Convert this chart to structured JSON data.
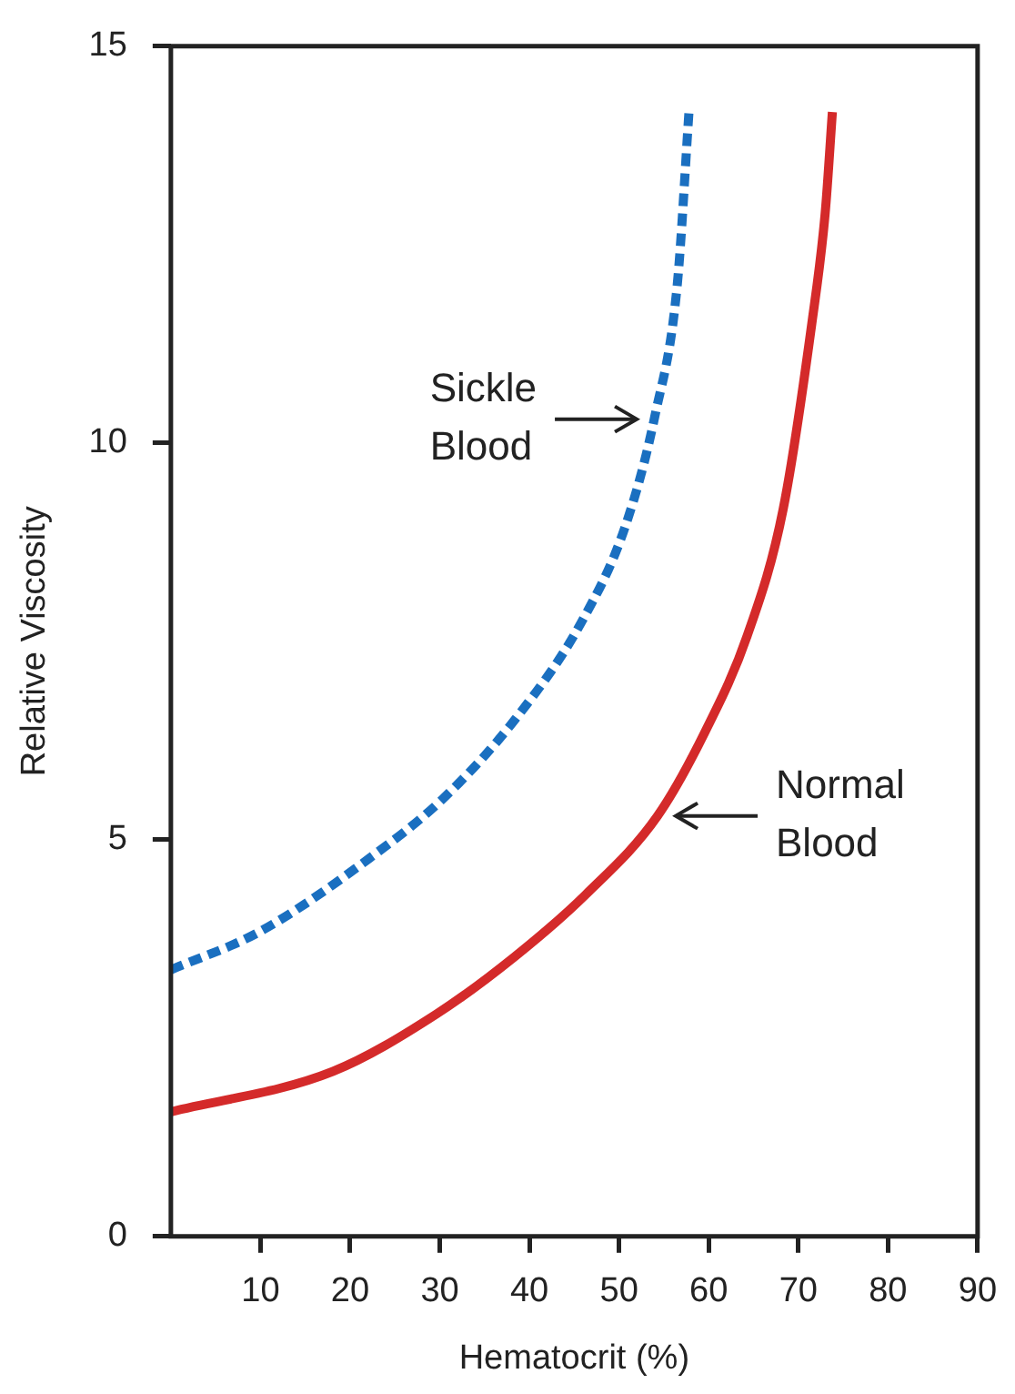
{
  "chart_data": {
    "type": "line",
    "xlabel": "Hematocrit (%)",
    "ylabel": "Relative Viscosity",
    "xlim": [
      0,
      90
    ],
    "xticks": [
      10,
      20,
      30,
      40,
      50,
      60,
      70,
      80,
      90
    ],
    "ylim": [
      0,
      15
    ],
    "yticks": [
      0,
      5,
      10,
      15
    ],
    "grid": false,
    "legend": false,
    "marker": "none",
    "series": [
      {
        "color": "#1a6fc0",
        "line_style": "dashed",
        "x": [
          0,
          9.9,
          22.2,
          30.3,
          38.5,
          45.8,
          50.7,
          54,
          56.5,
          57.8
        ],
        "values": [
          3.36,
          3.84,
          4.77,
          5.51,
          6.53,
          7.74,
          8.95,
          10.34,
          12.0,
          14.17
        ]
      },
      {
        "color": "#d42a2a",
        "line_style": "solid",
        "x": [
          0,
          18.1,
          29.6,
          38.3,
          46.3,
          54.3,
          59.6,
          64.3,
          68.3,
          71.5,
          73,
          73.8
        ],
        "values": [
          1.57,
          2.08,
          2.8,
          3.52,
          4.31,
          5.3,
          6.36,
          7.57,
          9.16,
          11.5,
          12.9,
          14.17
        ]
      }
    ],
    "annotations": [
      {
        "text": "Sickle Blood",
        "x": 54,
        "y": 10.3
      },
      {
        "text": "Normal Blood",
        "x": 54.3,
        "y": 5.3
      }
    ]
  }
}
